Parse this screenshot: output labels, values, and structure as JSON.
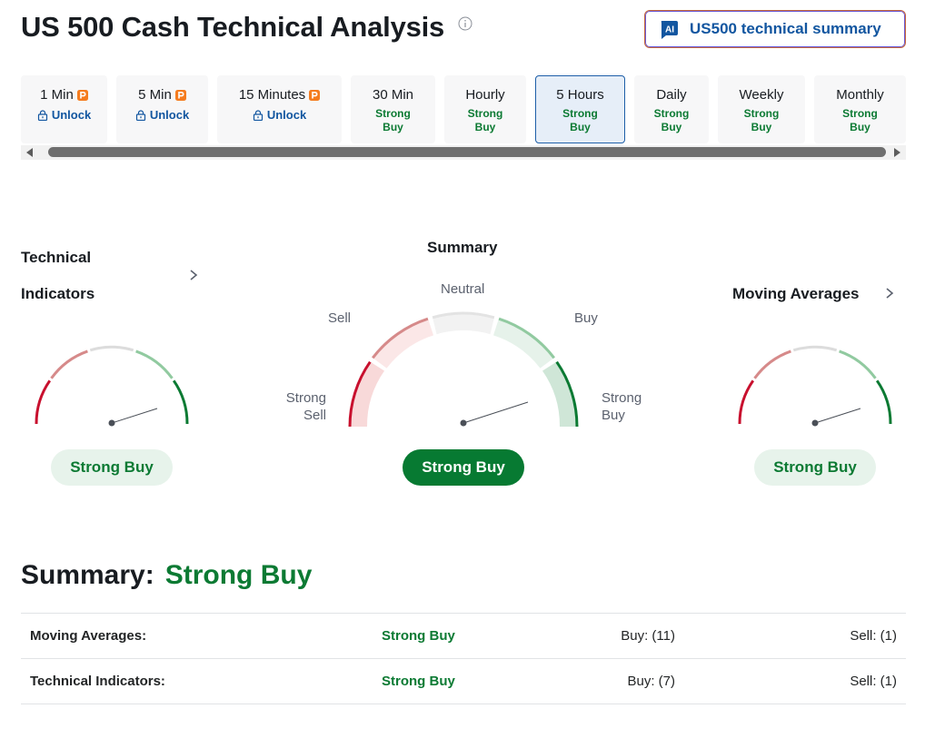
{
  "header": {
    "title": "US 500 Cash Technical Analysis",
    "ai_button_badge": "AI",
    "ai_button_label": "US500 technical summary"
  },
  "tabs": [
    {
      "name": "1 Min",
      "pro": true,
      "sub": "Unlock",
      "locked": true,
      "width": 95
    },
    {
      "name": "5 Min",
      "pro": true,
      "sub": "Unlock",
      "locked": true,
      "width": 101
    },
    {
      "name": "15 Minutes",
      "pro": true,
      "sub": "Unlock",
      "locked": true,
      "width": 137
    },
    {
      "name": "30 Min",
      "pro": false,
      "sub": "Strong Buy",
      "locked": false,
      "width": 93
    },
    {
      "name": "Hourly",
      "pro": false,
      "sub": "Strong Buy",
      "locked": false,
      "width": 90
    },
    {
      "name": "5 Hours",
      "pro": false,
      "sub": "Strong Buy",
      "locked": false,
      "active": true,
      "width": 99
    },
    {
      "name": "Daily",
      "pro": false,
      "sub": "Strong Buy",
      "locked": false,
      "width": 82
    },
    {
      "name": "Weekly",
      "pro": false,
      "sub": "Strong Buy",
      "locked": false,
      "width": 96
    },
    {
      "name": "Monthly",
      "pro": false,
      "sub": "Strong Buy",
      "locked": false,
      "width": 101
    }
  ],
  "technical_indicators": {
    "heading_line1": "Technical",
    "heading_line2": "Indicators",
    "result": "Strong Buy"
  },
  "summary_gauge": {
    "heading": "Summary",
    "labels": {
      "neutral": "Neutral",
      "sell": "Sell",
      "buy": "Buy",
      "strong_sell_1": "Strong",
      "strong_sell_2": "Sell",
      "strong_buy_1": "Strong",
      "strong_buy_2": "Buy"
    },
    "result": "Strong Buy"
  },
  "moving_averages": {
    "heading": "Moving Averages",
    "result": "Strong Buy"
  },
  "summary": {
    "label": "Summary:",
    "value": "Strong Buy",
    "rows": [
      {
        "name": "Moving Averages:",
        "result": "Strong Buy",
        "buy": "Buy: (11)",
        "sell": "Sell: (1)"
      },
      {
        "name": "Technical Indicators:",
        "result": "Strong Buy",
        "buy": "Buy: (7)",
        "sell": "Sell: (1)"
      }
    ]
  },
  "colors": {
    "strong_sell": "#c8102e",
    "sell": "#d68a8a",
    "neutral": "#dcdcdc",
    "buy": "#91caa0",
    "strong_buy": "#0c7a33",
    "brand_blue": "#1256a0"
  },
  "icons": [
    "info-icon",
    "ai-badge-icon",
    "pro-icon",
    "lock-icon",
    "chevron-right-icon",
    "scroll-left-arrow-icon",
    "scroll-right-arrow-icon"
  ]
}
